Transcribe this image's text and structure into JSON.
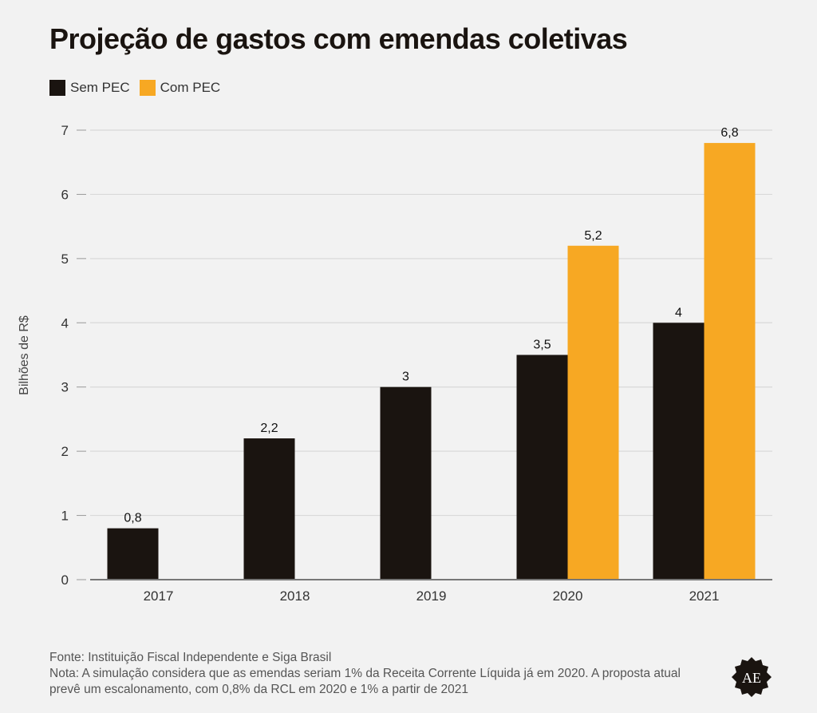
{
  "title": "Projeção de gastos com emendas coletivas",
  "legend": [
    {
      "label": "Sem PEC",
      "color": "#1a1410"
    },
    {
      "label": "Com PEC",
      "color": "#f7a823"
    }
  ],
  "footer": {
    "source": "Fonte: Instituição Fiscal Independente e Siga Brasil",
    "note": "Nota: A simulação considera que as emendas seriam 1% da Receita Corrente Líquida já em 2020. A proposta atual prevê um escalonamento, com 0,8% da RCL em 2020 e 1% a partir de 2021"
  },
  "logo": {
    "text": "AE",
    "icon": "ae-seal-icon"
  },
  "chart_data": {
    "type": "bar",
    "title": "Projeção de gastos com emendas coletivas",
    "xlabel": "",
    "ylabel": "Bilhões de R$",
    "ylim": [
      0,
      7
    ],
    "yticks": [
      "0",
      "1",
      "2",
      "3",
      "4",
      "5",
      "6",
      "7"
    ],
    "grid": true,
    "legend_position": "top-left",
    "categories": [
      "2017",
      "2018",
      "2019",
      "2020",
      "2021"
    ],
    "series": [
      {
        "name": "Sem PEC",
        "color": "#1a1410",
        "values": [
          0.8,
          2.2,
          3,
          3.5,
          4
        ],
        "labels": [
          "0,8",
          "2,2",
          "3",
          "3,5",
          "4"
        ]
      },
      {
        "name": "Com PEC",
        "color": "#f7a823",
        "values": [
          null,
          null,
          null,
          5.2,
          6.8
        ],
        "labels": [
          "",
          "",
          "",
          "5,2",
          "6,8"
        ]
      }
    ]
  }
}
